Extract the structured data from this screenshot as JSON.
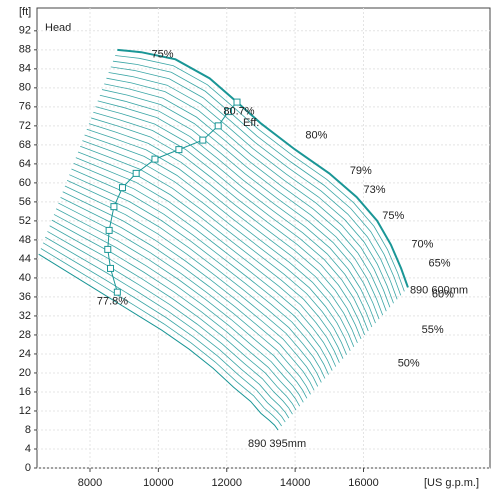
{
  "chart_data": {
    "type": "line",
    "y_label": "[ft]",
    "x_label": "[US g.p.m.]",
    "inner_label": "Head",
    "xlim": [
      6450,
      19700
    ],
    "ylim": [
      0,
      96.8
    ],
    "xticks": [
      8000,
      10000,
      12000,
      14000,
      16000
    ],
    "yticks": [
      0,
      4,
      8,
      12,
      16,
      20,
      24,
      28,
      32,
      36,
      40,
      44,
      48,
      52,
      56,
      60,
      64,
      68,
      72,
      76,
      80,
      84,
      88,
      92
    ],
    "grid": true,
    "series": [
      {
        "name": "890 600mm",
        "color": "#1a9696",
        "x": [
          8800,
          9500,
          10500,
          11500,
          12300,
          13000,
          14000,
          15000,
          15800,
          16400,
          16800,
          17100,
          17300
        ],
        "y": [
          88,
          87.5,
          86,
          82,
          77,
          72.5,
          67,
          62,
          57,
          52,
          47,
          42,
          38
        ]
      },
      {
        "name": "890 395mm",
        "color": "#1a9696",
        "x": [
          6500,
          7400,
          8300,
          9200,
          10100,
          10900,
          11600,
          12200,
          12700,
          13000,
          13250,
          13400,
          13500
        ],
        "y": [
          45,
          41,
          37,
          33,
          29,
          25,
          21,
          17,
          14,
          11.5,
          10,
          9,
          8
        ]
      },
      {
        "name": "Eff.",
        "color": "#1a9696",
        "x": [
          8800,
          8600,
          8520,
          8560,
          8700,
          8950,
          9350,
          9900,
          10600,
          11300,
          11750,
          12050,
          12300
        ],
        "y": [
          37,
          42,
          46,
          50,
          55,
          59,
          62,
          65,
          67,
          69,
          72,
          75,
          77
        ]
      }
    ],
    "annotations": [
      {
        "text": "77.8%",
        "x": 8200,
        "y": 35,
        "color": "#1a9696"
      },
      {
        "text": "80.7%",
        "x": 11900,
        "y": 75,
        "color": "#1a9696"
      },
      {
        "text": "75%",
        "x": 9800,
        "y": 87,
        "color": "#aaaaaa"
      },
      {
        "text": "80%",
        "x": 14300,
        "y": 70,
        "color": "#aaaaaa"
      },
      {
        "text": "79%",
        "x": 15600,
        "y": 62.5,
        "color": "#aaaaaa"
      },
      {
        "text": "73%",
        "x": 16000,
        "y": 58.5,
        "color": "#aaaaaa"
      },
      {
        "text": "75%",
        "x": 16550,
        "y": 53,
        "color": "#aaaaaa"
      },
      {
        "text": "70%",
        "x": 17400,
        "y": 47,
        "color": "#aaaaaa"
      },
      {
        "text": "65%",
        "x": 17900,
        "y": 43,
        "color": "#aaaaaa"
      },
      {
        "text": "60%",
        "x": 18000,
        "y": 36.5,
        "color": "#aaaaaa"
      },
      {
        "text": "55%",
        "x": 17700,
        "y": 29,
        "color": "#aaaaaa"
      },
      {
        "text": "50%",
        "x": 17000,
        "y": 22,
        "color": "#aaaaaa"
      }
    ]
  }
}
